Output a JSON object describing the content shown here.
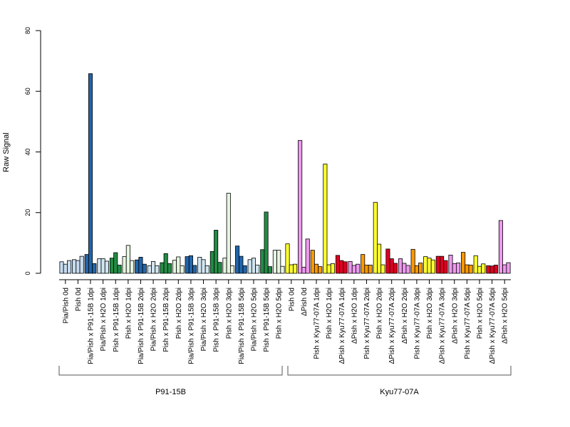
{
  "chart_data": {
    "type": "bar",
    "ylabel": "Raw Signal",
    "ylim": [
      0,
      80
    ],
    "yticks": [
      0,
      20,
      40,
      60,
      80
    ],
    "grid": false,
    "categories": [
      "Pia/Pish 0d",
      "Pish 0d",
      "Pia/Pish x P91-15B 1dpi",
      "Pia/Pish x H2O 1dpi",
      "Pish x P91-15B 1dpi",
      "Pish x H2O 1dpi",
      "Pia/Pish x P91-15B 2dpi",
      "Pia/Pish x H2O 2dpi",
      "Pish x P91-15B 2dpi",
      "Pish x H2O 2dpi",
      "Pia/Pish x P91-15B 3dpi",
      "Pia/Pish x H2O 3dpi",
      "Pish x P91-15B 3dpi",
      "Pish x H2O 3dpi",
      "Pia/Pish x P91-15B 5dpi",
      "Pia/Pish x H2O 5dpi",
      "Pish x P91-15B 5dpi",
      "Pish x H2O 5dpi",
      "Pish 0d",
      "ΔPish 0d",
      "Pish x Kyu77-07A 1dpi",
      "Pish x H2O 1dpi",
      "ΔPish x Kyu77-07A 1dpi",
      "ΔPish x H2O 1dpi",
      "Pish x Kyu77-07A 2dpi",
      "Pish x H2O 2dpi",
      "ΔPish x Kyu77-07A 2dpi",
      "ΔPish x H2O 2dpi",
      "Pish x Kyu77-07A 3dpi",
      "Pish x H2O 3dpi",
      "ΔPish x Kyu77-07A 3dpi",
      "ΔPish x H2O 3dpi",
      "Pish x Kyu77-07A 5dpi",
      "Pish x H2O 5dpi",
      "ΔPish x Kyu77-07A 5dpi",
      "ΔPish x H2O 5dpi"
    ],
    "colors": [
      "#c6dbef",
      "#c6dbef",
      "#2166ac",
      "#d1e5f0",
      "#238b45",
      "#e5f5e0",
      "#2166ac",
      "#d1e5f0",
      "#238b45",
      "#e5f5e0",
      "#2166ac",
      "#d1e5f0",
      "#238b45",
      "#e5f5e0",
      "#2166ac",
      "#d1e5f0",
      "#238b45",
      "#e5f5e0",
      "#ffff33",
      "#ee99ee",
      "#ff9900",
      "#ffff33",
      "#dd0022",
      "#ee99ee",
      "#ff9900",
      "#ffff33",
      "#dd0022",
      "#ee99ee",
      "#ff9900",
      "#ffff33",
      "#dd0022",
      "#ee99ee",
      "#ff9900",
      "#ffff33",
      "#dd0022",
      "#ee99ee"
    ],
    "values": [
      [
        3.8,
        3.0,
        4.2
      ],
      [
        4.5,
        4.2,
        5.6
      ],
      [
        6.2,
        65.8,
        3.2
      ],
      [
        4.8,
        4.8,
        4.0
      ],
      [
        5.0,
        6.8,
        2.7
      ],
      [
        5.5,
        9.2,
        4.2
      ],
      [
        4.4,
        5.3,
        3.0
      ],
      [
        2.5,
        3.9,
        2.5
      ],
      [
        3.5,
        6.5,
        3.2
      ],
      [
        4.3,
        5.4,
        2.5
      ],
      [
        5.5,
        5.8,
        2.6
      ],
      [
        5.3,
        4.5,
        2.5
      ],
      [
        7.2,
        14.2,
        3.6
      ],
      [
        5.0,
        26.4,
        2.5
      ],
      [
        9.0,
        5.6,
        2.5
      ],
      [
        4.5,
        5.0,
        2.7
      ],
      [
        7.8,
        20.2,
        2.2
      ],
      [
        7.6,
        7.6,
        2.3
      ],
      [
        9.7,
        2.8,
        3.0
      ],
      [
        43.8,
        2.0,
        11.3
      ],
      [
        7.6,
        3.0,
        2.2
      ],
      [
        36.0,
        2.8,
        3.2
      ],
      [
        5.9,
        4.2,
        3.8
      ],
      [
        3.9,
        2.6,
        3.0
      ],
      [
        6.2,
        2.7,
        2.7
      ],
      [
        23.4,
        9.6,
        2.8
      ],
      [
        8.0,
        4.8,
        3.3
      ],
      [
        4.8,
        3.3,
        2.6
      ],
      [
        7.9,
        2.5,
        3.4
      ],
      [
        5.5,
        5.0,
        4.4
      ],
      [
        5.6,
        5.6,
        4.2
      ],
      [
        6.0,
        3.2,
        3.4
      ],
      [
        6.9,
        2.8,
        2.7
      ],
      [
        5.8,
        2.3,
        3.1
      ],
      [
        2.5,
        2.4,
        2.7
      ],
      [
        17.4,
        2.8,
        3.5
      ]
    ],
    "groups": [
      {
        "label": "P91-15B",
        "start": 0,
        "end": 17
      },
      {
        "label": "Kyu77-07A",
        "start": 18,
        "end": 35
      }
    ]
  }
}
